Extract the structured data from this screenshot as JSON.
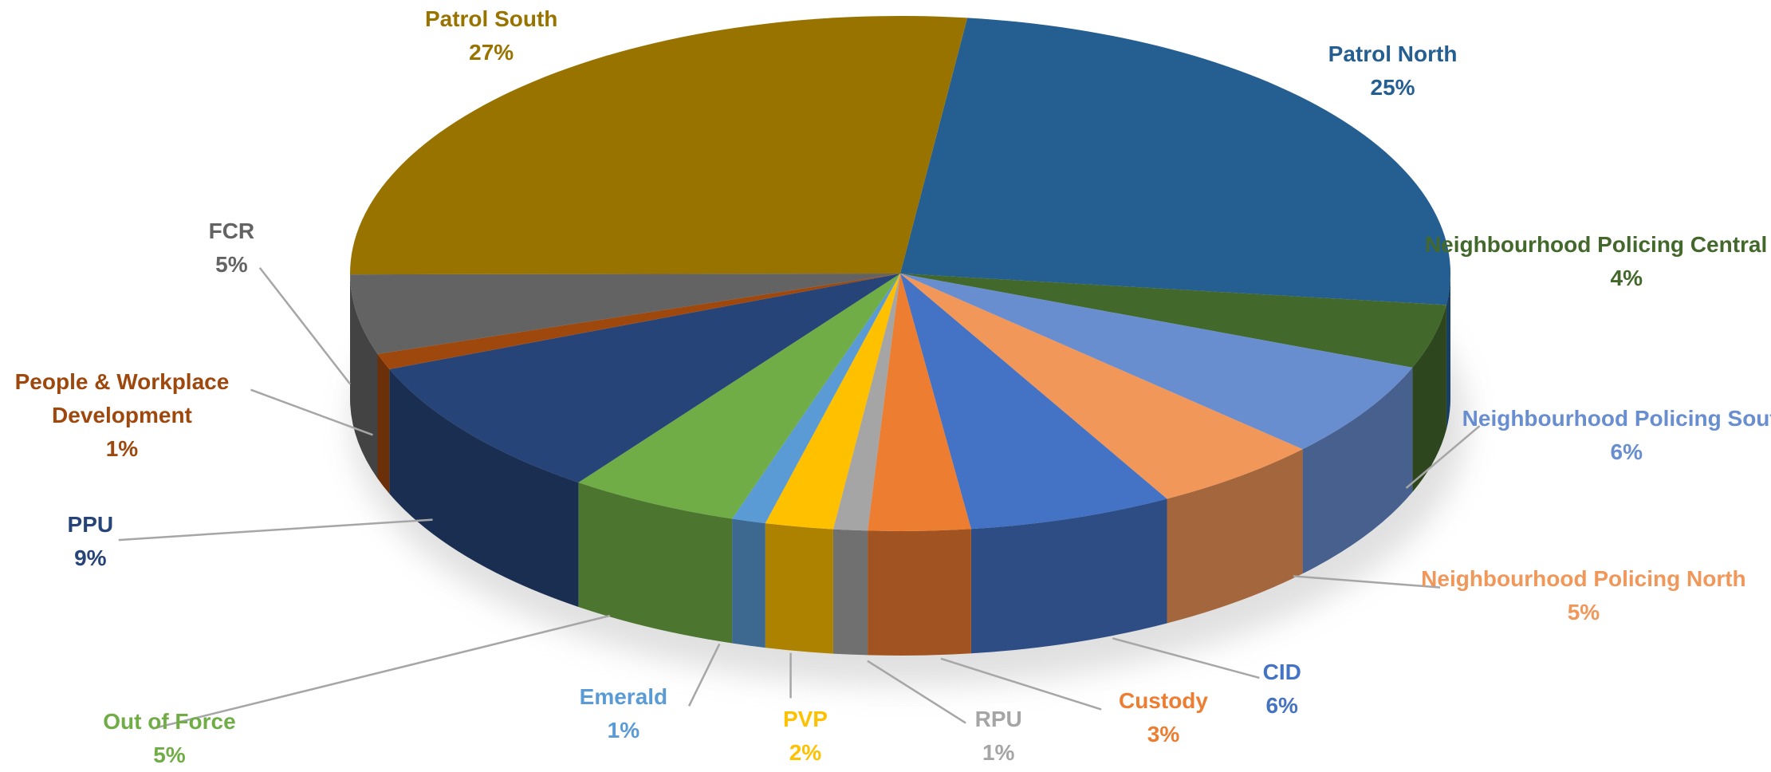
{
  "chart_data": {
    "type": "pie",
    "categories": [
      "Patrol North",
      "Neighbourhood Policing Central Beds",
      "Neighbourhood Policing South",
      "Neighbourhood Policing North",
      "CID",
      "Custody",
      "RPU",
      "PVP",
      "Emerald",
      "Out of Force",
      "PPU",
      "People & Workplace Development",
      "FCR",
      "Patrol South"
    ],
    "values": [
      25,
      4,
      6,
      5,
      6,
      3,
      1,
      2,
      1,
      5,
      9,
      1,
      5,
      27
    ],
    "value_labels": [
      "25%",
      "4%",
      "6%",
      "5%",
      "6%",
      "3%",
      "1%",
      "2%",
      "1%",
      "5%",
      "9%",
      "1%",
      "5%",
      "27%"
    ],
    "colors": [
      "#255e91",
      "#43682b",
      "#698ed0",
      "#f1975a",
      "#4472c4",
      "#ed7d31",
      "#a5a5a5",
      "#ffc000",
      "#5b9bd5",
      "#70ad47",
      "#264478",
      "#9e480e",
      "#636363",
      "#997300"
    ]
  }
}
